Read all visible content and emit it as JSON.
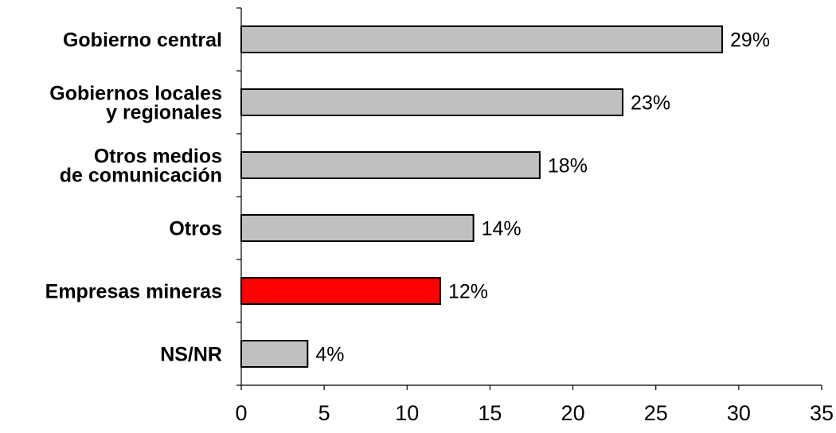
{
  "chart_data": {
    "type": "bar",
    "orientation": "horizontal",
    "title": "",
    "xlabel": "",
    "ylabel": "",
    "xlim": [
      0,
      35
    ],
    "xticks": [
      0,
      5,
      10,
      15,
      20,
      25,
      30,
      35
    ],
    "grid": false,
    "legend": "none",
    "categories": [
      [
        "Gobierno central"
      ],
      [
        "Gobiernos locales",
        "y regionales"
      ],
      [
        "Otros medios",
        "de comunicación"
      ],
      [
        "Otros"
      ],
      [
        "Empresas mineras"
      ],
      [
        "NS/NR"
      ]
    ],
    "values": [
      29,
      23,
      18,
      14,
      12,
      4
    ],
    "value_labels": [
      "29%",
      "23%",
      "18%",
      "14%",
      "12%",
      "4%"
    ],
    "bar_colors": [
      "#c0c0c0",
      "#c0c0c0",
      "#c0c0c0",
      "#c0c0c0",
      "#ff0000",
      "#c0c0c0"
    ],
    "bar_outline_color": "#000000"
  }
}
